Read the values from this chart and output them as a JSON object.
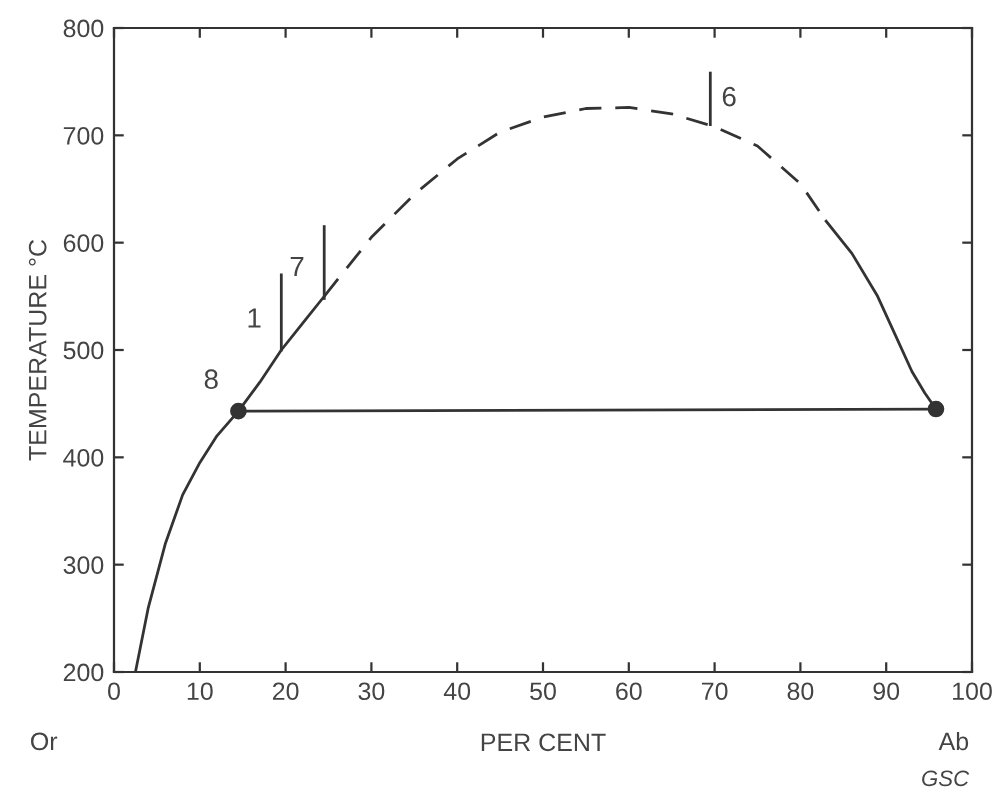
{
  "chart_data": {
    "type": "line",
    "xlabel": "PER CENT",
    "ylabel": "TEMPERATURE °C",
    "xlim": [
      0,
      100
    ],
    "ylim": [
      200,
      800
    ],
    "xticks": [
      0,
      10,
      20,
      30,
      40,
      50,
      60,
      70,
      80,
      90,
      100
    ],
    "yticks": [
      200,
      300,
      400,
      500,
      600,
      700,
      800
    ],
    "grid": false,
    "legend": false,
    "series": [
      {
        "color": "#333333",
        "line_style": "solid",
        "x": [
          2.5,
          4,
          6,
          8,
          10,
          12,
          14.5,
          17,
          19.5,
          22,
          24.5
        ],
        "values": [
          200,
          260,
          320,
          365,
          395,
          420,
          443,
          470,
          500,
          525,
          550
        ]
      },
      {
        "color": "#333333",
        "line_style": "dashed",
        "x": [
          24.5,
          30,
          35,
          40,
          45,
          50,
          55,
          60,
          65,
          70,
          75,
          80,
          83
        ],
        "values": [
          550,
          605,
          645,
          678,
          703,
          717,
          725,
          726,
          720,
          708,
          690,
          655,
          620
        ]
      },
      {
        "color": "#333333",
        "line_style": "solid",
        "x": [
          83,
          86,
          89,
          91,
          93,
          94.5,
          95.8
        ],
        "values": [
          620,
          590,
          550,
          515,
          480,
          460,
          445
        ]
      },
      {
        "color": "#333333",
        "line_style": "solid",
        "x": [
          14.5,
          95.8
        ],
        "values": [
          443,
          445
        ]
      },
      {
        "type": "scatter",
        "color": "#333333",
        "marker": "circle",
        "x": [
          14.5,
          95.8
        ],
        "values": [
          443,
          445
        ]
      },
      {
        "color": "#333333",
        "line_style": "solid",
        "x": [
          19.5,
          19.5
        ],
        "values": [
          500,
          570
        ]
      },
      {
        "color": "#333333",
        "line_style": "solid",
        "x": [
          24.5,
          24.5
        ],
        "values": [
          548,
          615
        ]
      },
      {
        "color": "#333333",
        "line_style": "solid",
        "x": [
          69.5,
          69.5
        ],
        "values": [
          710,
          758
        ]
      }
    ],
    "annotations": [
      {
        "text": "1",
        "x": 19.5,
        "y": 500
      },
      {
        "text": "7",
        "x": 24.5,
        "y": 548
      },
      {
        "text": "6",
        "x": 69.5,
        "y": 758
      },
      {
        "text": "8",
        "x": 14.5,
        "y": 443
      },
      "Or",
      "Ab",
      "GSC"
    ]
  }
}
